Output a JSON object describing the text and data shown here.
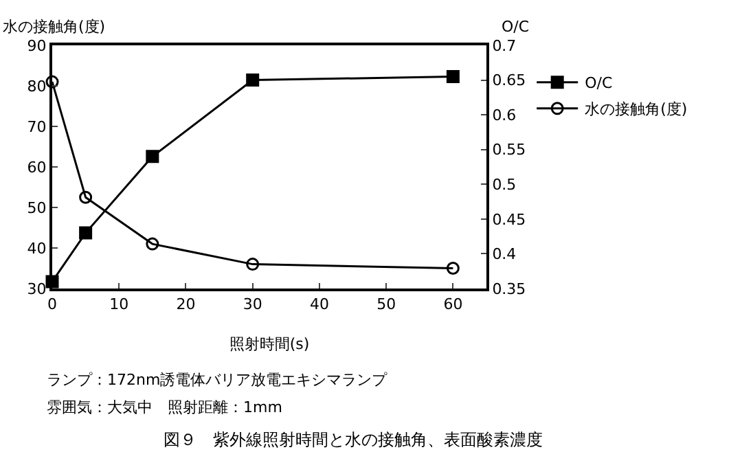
{
  "chart_data": {
    "type": "line",
    "xlabel": "照射時間(s)",
    "ylabel": "水の接触角(度)",
    "y2label": "O/C",
    "x": [
      0,
      5,
      15,
      30,
      60
    ],
    "series": [
      {
        "name": "O/C",
        "color": "#000000",
        "axis": "y2",
        "marker": "square",
        "values": [
          0.36,
          0.43,
          0.54,
          0.65,
          0.655
        ]
      },
      {
        "name": "水の接触角(度)",
        "color": "#000000",
        "marker": "circle",
        "values": [
          81,
          52.5,
          41,
          36,
          35
        ]
      }
    ],
    "xlim": [
      0,
      65
    ],
    "xticks": [
      0,
      10,
      20,
      30,
      40,
      50,
      60
    ],
    "ylim": [
      30,
      90
    ],
    "yticks": [
      30,
      40,
      50,
      60,
      70,
      80,
      90
    ],
    "y2lim": [
      0.35,
      0.7
    ],
    "y2ticks": [
      0.35,
      0.4,
      0.45,
      0.5,
      0.55,
      0.6,
      0.65,
      0.7
    ],
    "grid": false,
    "legend": "right",
    "line_style": "solid",
    "annotations": [
      "ランプ：172nm誘電体バリア放電エキシマランプ",
      "雰囲気：大気中　照射距離：1mm",
      "図９　紫外線照射時間と水の接触角、表面酸素濃度"
    ]
  }
}
